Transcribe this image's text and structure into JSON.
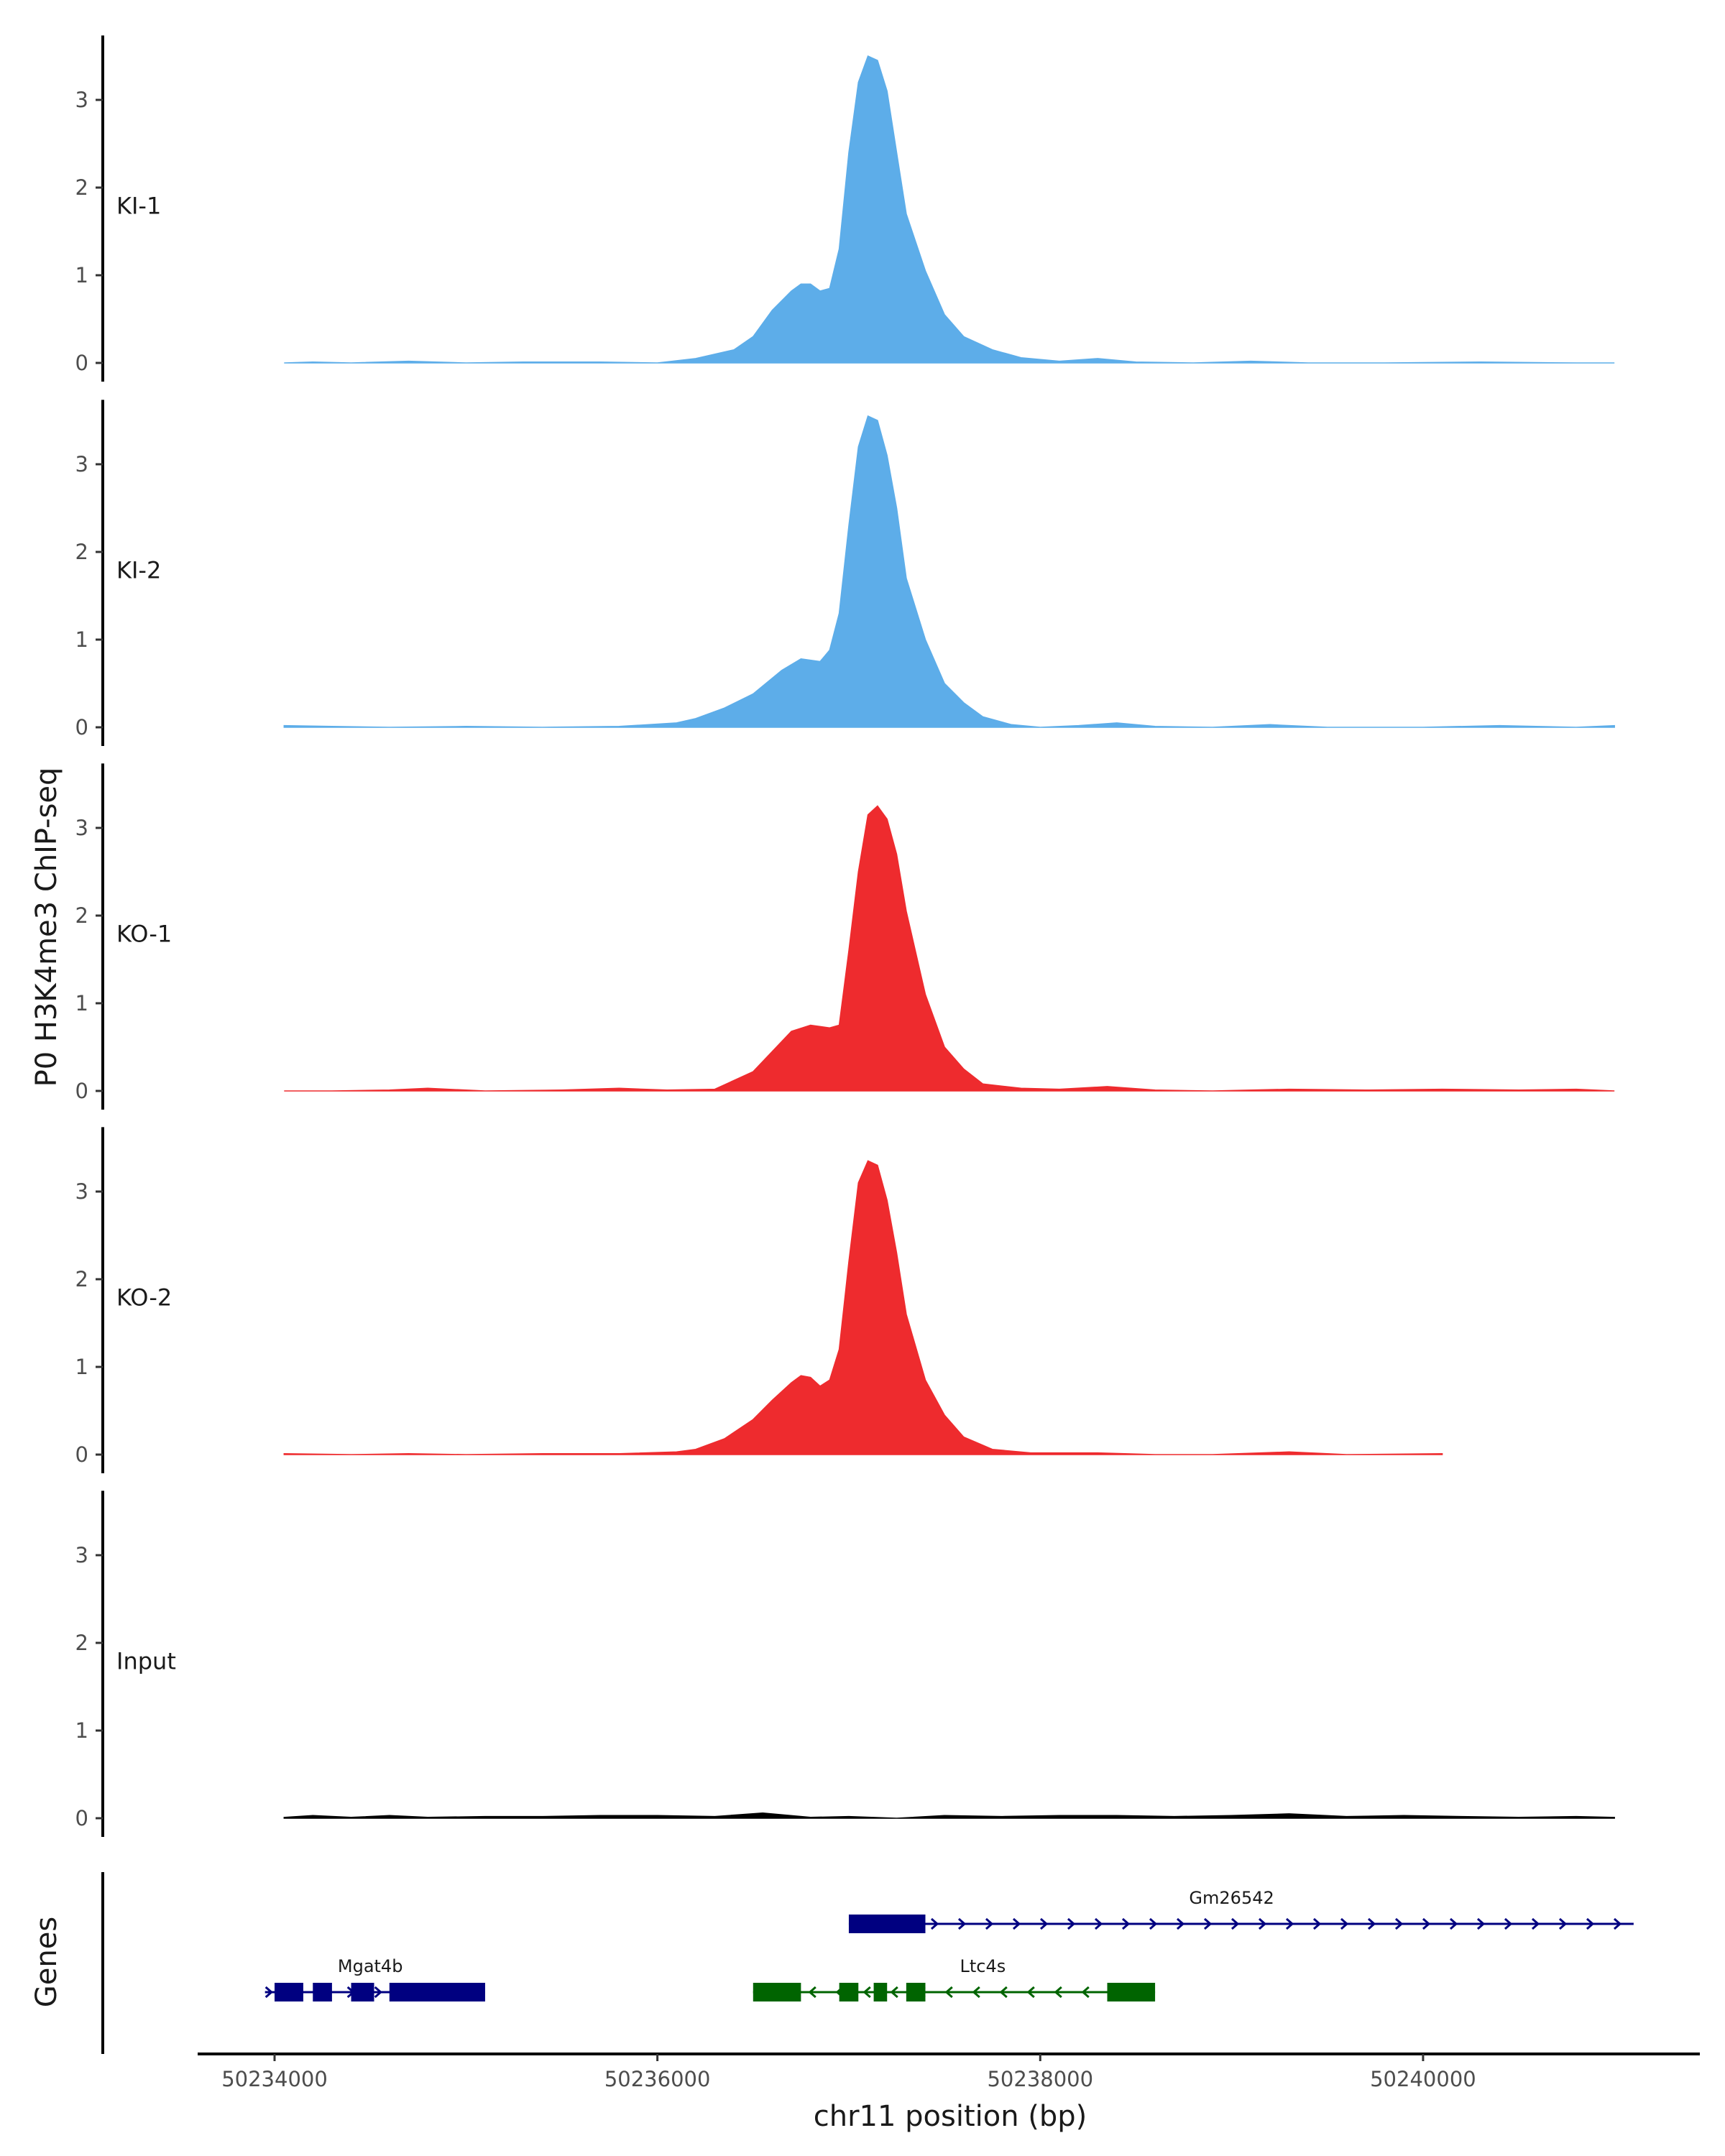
{
  "chart_data": {
    "type": "area",
    "title": "",
    "ylabel": "P0 H3K4me3 ChIP-seq",
    "xlabel": "chr11 position (bp)",
    "ylim": [
      -0.1,
      3.8
    ],
    "xlim": [
      50233500,
      50241600
    ],
    "yticks": [
      0,
      1,
      2,
      3
    ],
    "xticks": [
      50234000,
      50236000,
      50238000,
      50240000
    ],
    "xtick_labels": [
      "50234000",
      "50236000",
      "50238000",
      "50240000"
    ],
    "tracks": [
      {
        "name": "KI-1",
        "color": "#5dade9",
        "points": [
          [
            50234050,
            0
          ],
          [
            50234200,
            0.01
          ],
          [
            50234400,
            0
          ],
          [
            50234700,
            0.02
          ],
          [
            50235000,
            0
          ],
          [
            50235300,
            0.01
          ],
          [
            50235700,
            0.01
          ],
          [
            50236000,
            0
          ],
          [
            50236200,
            0.05
          ],
          [
            50236400,
            0.15
          ],
          [
            50236500,
            0.3
          ],
          [
            50236600,
            0.6
          ],
          [
            50236700,
            0.82
          ],
          [
            50236750,
            0.9
          ],
          [
            50236800,
            0.9
          ],
          [
            50236850,
            0.82
          ],
          [
            50236900,
            0.85
          ],
          [
            50236950,
            1.3
          ],
          [
            50237000,
            2.4
          ],
          [
            50237050,
            3.2
          ],
          [
            50237100,
            3.5
          ],
          [
            50237150,
            3.45
          ],
          [
            50237200,
            3.1
          ],
          [
            50237250,
            2.4
          ],
          [
            50237300,
            1.7
          ],
          [
            50237400,
            1.05
          ],
          [
            50237500,
            0.55
          ],
          [
            50237600,
            0.3
          ],
          [
            50237750,
            0.15
          ],
          [
            50237900,
            0.06
          ],
          [
            50238100,
            0.02
          ],
          [
            50238300,
            0.05
          ],
          [
            50238500,
            0.01
          ],
          [
            50238800,
            0
          ],
          [
            50239100,
            0.02
          ],
          [
            50239400,
            0
          ],
          [
            50239800,
            0
          ],
          [
            50240300,
            0.01
          ],
          [
            50240800,
            0
          ],
          [
            50241000,
            0
          ]
        ]
      },
      {
        "name": "KI-2",
        "color": "#5dade9",
        "points": [
          [
            50234050,
            0.02
          ],
          [
            50234300,
            0.01
          ],
          [
            50234600,
            0
          ],
          [
            50235000,
            0.01
          ],
          [
            50235400,
            0
          ],
          [
            50235800,
            0.01
          ],
          [
            50236100,
            0.05
          ],
          [
            50236200,
            0.1
          ],
          [
            50236350,
            0.22
          ],
          [
            50236500,
            0.38
          ],
          [
            50236650,
            0.65
          ],
          [
            50236750,
            0.78
          ],
          [
            50236850,
            0.75
          ],
          [
            50236900,
            0.88
          ],
          [
            50236950,
            1.3
          ],
          [
            50237000,
            2.3
          ],
          [
            50237050,
            3.2
          ],
          [
            50237100,
            3.55
          ],
          [
            50237150,
            3.5
          ],
          [
            50237200,
            3.1
          ],
          [
            50237250,
            2.5
          ],
          [
            50237300,
            1.7
          ],
          [
            50237400,
            1.0
          ],
          [
            50237500,
            0.5
          ],
          [
            50237600,
            0.28
          ],
          [
            50237700,
            0.12
          ],
          [
            50237850,
            0.03
          ],
          [
            50238000,
            0
          ],
          [
            50238200,
            0.02
          ],
          [
            50238400,
            0.05
          ],
          [
            50238600,
            0.01
          ],
          [
            50238900,
            0
          ],
          [
            50239200,
            0.03
          ],
          [
            50239500,
            0
          ],
          [
            50240000,
            0
          ],
          [
            50240400,
            0.02
          ],
          [
            50240800,
            0
          ],
          [
            50241000,
            0.02
          ]
        ]
      },
      {
        "name": "KO-1",
        "color": "#ee2b2e",
        "points": [
          [
            50234050,
            0
          ],
          [
            50234300,
            0
          ],
          [
            50234600,
            0.01
          ],
          [
            50234800,
            0.03
          ],
          [
            50235100,
            0
          ],
          [
            50235500,
            0.01
          ],
          [
            50235800,
            0.03
          ],
          [
            50236050,
            0.01
          ],
          [
            50236300,
            0.02
          ],
          [
            50236500,
            0.22
          ],
          [
            50236600,
            0.45
          ],
          [
            50236700,
            0.68
          ],
          [
            50236800,
            0.75
          ],
          [
            50236900,
            0.72
          ],
          [
            50236950,
            0.75
          ],
          [
            50237000,
            1.6
          ],
          [
            50237050,
            2.5
          ],
          [
            50237100,
            3.15
          ],
          [
            50237150,
            3.25
          ],
          [
            50237200,
            3.1
          ],
          [
            50237250,
            2.7
          ],
          [
            50237300,
            2.05
          ],
          [
            50237400,
            1.1
          ],
          [
            50237500,
            0.5
          ],
          [
            50237600,
            0.25
          ],
          [
            50237700,
            0.08
          ],
          [
            50237900,
            0.03
          ],
          [
            50238100,
            0.02
          ],
          [
            50238350,
            0.05
          ],
          [
            50238600,
            0.01
          ],
          [
            50238900,
            0
          ],
          [
            50239300,
            0.02
          ],
          [
            50239700,
            0.01
          ],
          [
            50240100,
            0.02
          ],
          [
            50240500,
            0.01
          ],
          [
            50240800,
            0.02
          ],
          [
            50241000,
            0
          ]
        ]
      },
      {
        "name": "KO-2",
        "color": "#ee2b2e",
        "points": [
          [
            50234050,
            0.01
          ],
          [
            50234400,
            0
          ],
          [
            50234700,
            0.01
          ],
          [
            50235000,
            0
          ],
          [
            50235400,
            0.01
          ],
          [
            50235800,
            0.01
          ],
          [
            50236100,
            0.03
          ],
          [
            50236200,
            0.06
          ],
          [
            50236350,
            0.18
          ],
          [
            50236500,
            0.4
          ],
          [
            50236600,
            0.62
          ],
          [
            50236700,
            0.82
          ],
          [
            50236750,
            0.9
          ],
          [
            50236800,
            0.88
          ],
          [
            50236850,
            0.78
          ],
          [
            50236900,
            0.85
          ],
          [
            50236950,
            1.2
          ],
          [
            50237000,
            2.2
          ],
          [
            50237050,
            3.1
          ],
          [
            50237100,
            3.35
          ],
          [
            50237150,
            3.3
          ],
          [
            50237200,
            2.9
          ],
          [
            50237250,
            2.3
          ],
          [
            50237300,
            1.6
          ],
          [
            50237400,
            0.85
          ],
          [
            50237500,
            0.45
          ],
          [
            50237600,
            0.2
          ],
          [
            50237750,
            0.06
          ],
          [
            50237950,
            0.02
          ],
          [
            50238300,
            0.02
          ],
          [
            50238600,
            0
          ],
          [
            50238900,
            0
          ],
          [
            50239300,
            0.03
          ],
          [
            50239600,
            0
          ],
          [
            50240100,
            0.01
          ]
        ]
      },
      {
        "name": "Input",
        "color": "#000000",
        "points": [
          [
            50234050,
            0.01
          ],
          [
            50234200,
            0.03
          ],
          [
            50234400,
            0.01
          ],
          [
            50234600,
            0.03
          ],
          [
            50234800,
            0.01
          ],
          [
            50235100,
            0.02
          ],
          [
            50235400,
            0.02
          ],
          [
            50235700,
            0.03
          ],
          [
            50236000,
            0.03
          ],
          [
            50236300,
            0.02
          ],
          [
            50236550,
            0.06
          ],
          [
            50236800,
            0.01
          ],
          [
            50237000,
            0.02
          ],
          [
            50237250,
            0
          ],
          [
            50237500,
            0.03
          ],
          [
            50237800,
            0.02
          ],
          [
            50238100,
            0.03
          ],
          [
            50238400,
            0.03
          ],
          [
            50238700,
            0.02
          ],
          [
            50239000,
            0.03
          ],
          [
            50239300,
            0.05
          ],
          [
            50239600,
            0.02
          ],
          [
            50239900,
            0.03
          ],
          [
            50240200,
            0.02
          ],
          [
            50240500,
            0.01
          ],
          [
            50240800,
            0.02
          ],
          [
            50241000,
            0.01
          ]
        ]
      }
    ],
    "genes_track": {
      "label": "Genes",
      "genes": [
        {
          "name": "Gm26542",
          "strand": "+",
          "color": "#000080",
          "start": 50237000,
          "end": 50241100,
          "row": 0,
          "label_position": 50239000,
          "exons": [
            [
              50237000,
              50237400
            ]
          ]
        },
        {
          "name": "Mgat4b",
          "strand": "+",
          "color": "#000080",
          "start": 50233950,
          "end": 50235100,
          "row": 1,
          "label_position": 50234500,
          "exons": [
            [
              50234000,
              50234150
            ],
            [
              50234200,
              50234300
            ],
            [
              50234400,
              50234520
            ],
            [
              50234600,
              50235100
            ]
          ]
        },
        {
          "name": "Ltc4s",
          "strand": "-",
          "color": "#006400",
          "start": 50236500,
          "end": 50238600,
          "row": 1,
          "label_position": 50237700,
          "exons": [
            [
              50236500,
              50236750
            ],
            [
              50236950,
              50237050
            ],
            [
              50237130,
              50237200
            ],
            [
              50237300,
              50237400
            ],
            [
              50238350,
              50238600
            ]
          ]
        }
      ]
    }
  }
}
